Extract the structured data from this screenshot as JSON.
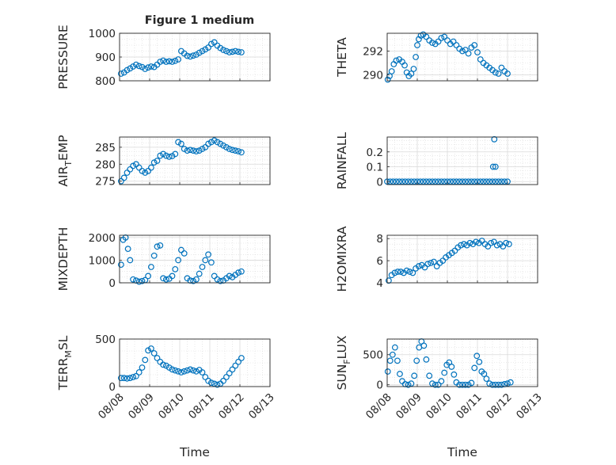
{
  "figure": {
    "title": "Figure 1 medium"
  },
  "style": {
    "marker_color": "#0072BD",
    "axis_color": "#262626",
    "grid_color": "#d9d9d9"
  },
  "chart_data": [
    {
      "type": "scatter",
      "ylabel": "PRESSURE",
      "xlabel": "",
      "xlim": [
        "08/08",
        "08/13"
      ],
      "ylim": [
        800,
        1000
      ],
      "yticks": [
        800,
        900,
        1000
      ],
      "xticks": [
        "08/08",
        "08/09",
        "08/10",
        "08/11",
        "08/12",
        "08/13"
      ],
      "grid": true,
      "minor_grid": true,
      "x": [
        0.05,
        0.15,
        0.25,
        0.35,
        0.45,
        0.55,
        0.65,
        0.75,
        0.85,
        0.95,
        1.05,
        1.15,
        1.25,
        1.35,
        1.45,
        1.55,
        1.65,
        1.75,
        1.85,
        1.95,
        2.05,
        2.15,
        2.25,
        2.35,
        2.45,
        2.55,
        2.65,
        2.75,
        2.85,
        2.95,
        3.05,
        3.15,
        3.25,
        3.35,
        3.45,
        3.55,
        3.65,
        3.75,
        3.85,
        3.95,
        4.05
      ],
      "y": [
        830,
        835,
        845,
        852,
        860,
        868,
        862,
        858,
        850,
        856,
        860,
        858,
        868,
        880,
        885,
        880,
        882,
        880,
        884,
        890,
        925,
        915,
        905,
        902,
        906,
        910,
        918,
        925,
        932,
        940,
        955,
        962,
        948,
        938,
        930,
        925,
        920,
        922,
        925,
        922,
        920
      ]
    },
    {
      "type": "scatter",
      "ylabel": "THETA",
      "xlabel": "",
      "xlim": [
        "08/08",
        "08/13"
      ],
      "ylim": [
        289.5,
        293.5
      ],
      "yticks": [
        290,
        292
      ],
      "xticks": [
        "08/08",
        "08/09",
        "08/10",
        "08/11",
        "08/12",
        "08/13"
      ],
      "grid": true,
      "minor_grid": true,
      "x": [
        0.02,
        0.08,
        0.15,
        0.22,
        0.3,
        0.4,
        0.5,
        0.58,
        0.65,
        0.72,
        0.8,
        0.88,
        0.95,
        1.0,
        1.05,
        1.12,
        1.2,
        1.3,
        1.4,
        1.5,
        1.6,
        1.7,
        1.8,
        1.9,
        2.0,
        2.1,
        2.2,
        2.3,
        2.4,
        2.5,
        2.6,
        2.7,
        2.8,
        2.9,
        3.0,
        3.1,
        3.2,
        3.3,
        3.4,
        3.5,
        3.6,
        3.7,
        3.8,
        3.9,
        4.0
      ],
      "y": [
        289.6,
        289.9,
        290.3,
        290.9,
        291.2,
        291.3,
        291.1,
        290.8,
        290.2,
        289.9,
        290.1,
        290.5,
        291.5,
        292.5,
        293.0,
        293.3,
        293.4,
        293.2,
        292.9,
        292.7,
        292.6,
        292.8,
        293.1,
        293.2,
        292.9,
        292.6,
        292.8,
        292.5,
        292.2,
        292.0,
        292.1,
        291.8,
        292.3,
        292.5,
        291.9,
        291.3,
        291.0,
        290.8,
        290.6,
        290.4,
        290.2,
        290.1,
        290.6,
        290.3,
        290.1
      ]
    },
    {
      "type": "scatter",
      "ylabel": "AIR_TEMP",
      "xlabel": "",
      "xlim": [
        "08/08",
        "08/13"
      ],
      "ylim": [
        274,
        288
      ],
      "yticks": [
        275,
        280,
        285
      ],
      "xticks": [
        "08/08",
        "08/09",
        "08/10",
        "08/11",
        "08/12",
        "08/13"
      ],
      "grid": true,
      "minor_grid": true,
      "x": [
        0.05,
        0.15,
        0.25,
        0.35,
        0.45,
        0.55,
        0.65,
        0.75,
        0.85,
        0.95,
        1.05,
        1.15,
        1.25,
        1.35,
        1.45,
        1.55,
        1.65,
        1.75,
        1.85,
        1.95,
        2.05,
        2.15,
        2.25,
        2.35,
        2.45,
        2.55,
        2.65,
        2.75,
        2.85,
        2.95,
        3.05,
        3.15,
        3.25,
        3.35,
        3.45,
        3.55,
        3.65,
        3.75,
        3.85,
        3.95,
        4.05
      ],
      "y": [
        275,
        276,
        277.5,
        278.5,
        279.5,
        280,
        279,
        278,
        277.5,
        278,
        279,
        280.5,
        281,
        282.5,
        283,
        282.5,
        282.2,
        282.4,
        283,
        286.5,
        286,
        284.5,
        284,
        284.2,
        284,
        283.8,
        284,
        284.5,
        285,
        286,
        286.5,
        287,
        286.5,
        286,
        285.5,
        285,
        284.5,
        284.2,
        284,
        283.8,
        283.5
      ]
    },
    {
      "type": "scatter",
      "ylabel": "RAINFALL",
      "xlabel": "",
      "xlim": [
        "08/08",
        "08/13"
      ],
      "ylim": [
        -0.02,
        0.3
      ],
      "yticks": [
        0,
        0.1,
        0.2
      ],
      "xticks": [
        "08/08",
        "08/09",
        "08/10",
        "08/11",
        "08/12",
        "08/13"
      ],
      "grid": true,
      "minor_grid": true,
      "x": [
        0.0,
        0.1,
        0.2,
        0.3,
        0.4,
        0.5,
        0.6,
        0.7,
        0.8,
        0.9,
        1.0,
        1.1,
        1.2,
        1.3,
        1.4,
        1.5,
        1.6,
        1.7,
        1.8,
        1.9,
        2.0,
        2.1,
        2.2,
        2.3,
        2.4,
        2.5,
        2.6,
        2.7,
        2.8,
        2.9,
        3.0,
        3.1,
        3.2,
        3.3,
        3.4,
        3.5,
        3.6,
        3.7,
        3.8,
        3.9,
        4.0,
        3.52,
        3.56,
        3.6
      ],
      "y": [
        0,
        0,
        0,
        0,
        0,
        0,
        0,
        0,
        0,
        0,
        0,
        0,
        0,
        0,
        0,
        0,
        0,
        0,
        0,
        0,
        0,
        0,
        0,
        0,
        0,
        0,
        0,
        0,
        0,
        0,
        0,
        0,
        0,
        0,
        0,
        0,
        0,
        0,
        0,
        0,
        0,
        0.1,
        0.285,
        0.1
      ]
    },
    {
      "type": "scatter",
      "ylabel": "MIXDEPTH",
      "xlabel": "",
      "xlim": [
        "08/08",
        "08/13"
      ],
      "ylim": [
        0,
        2100
      ],
      "yticks": [
        0,
        1000,
        2000
      ],
      "xticks": [
        "08/08",
        "08/09",
        "08/10",
        "08/11",
        "08/12",
        "08/13"
      ],
      "grid": true,
      "minor_grid": true,
      "x": [
        0.05,
        0.12,
        0.2,
        0.28,
        0.35,
        0.45,
        0.55,
        0.65,
        0.75,
        0.85,
        0.95,
        1.05,
        1.15,
        1.25,
        1.35,
        1.45,
        1.55,
        1.65,
        1.75,
        1.85,
        1.95,
        2.05,
        2.15,
        2.25,
        2.35,
        2.45,
        2.55,
        2.65,
        2.75,
        2.85,
        2.95,
        3.05,
        3.15,
        3.25,
        3.35,
        3.45,
        3.55,
        3.65,
        3.75,
        3.85,
        3.95,
        4.05
      ],
      "y": [
        800,
        1900,
        2000,
        1500,
        1000,
        150,
        100,
        50,
        80,
        120,
        300,
        700,
        1200,
        1600,
        1650,
        200,
        150,
        180,
        300,
        600,
        1000,
        1450,
        1300,
        200,
        100,
        80,
        150,
        400,
        700,
        1000,
        1250,
        900,
        300,
        150,
        80,
        100,
        200,
        300,
        250,
        350,
        450,
        500
      ]
    },
    {
      "type": "scatter",
      "ylabel": "H2OMIXRA",
      "xlabel": "",
      "xlim": [
        "08/08",
        "08/13"
      ],
      "ylim": [
        4,
        8.3
      ],
      "yticks": [
        4,
        6,
        8
      ],
      "xticks": [
        "08/08",
        "08/09",
        "08/10",
        "08/11",
        "08/12",
        "08/13"
      ],
      "grid": true,
      "minor_grid": true,
      "x": [
        0.05,
        0.15,
        0.25,
        0.35,
        0.45,
        0.55,
        0.65,
        0.75,
        0.85,
        0.95,
        1.05,
        1.15,
        1.25,
        1.35,
        1.45,
        1.55,
        1.65,
        1.75,
        1.85,
        1.95,
        2.05,
        2.15,
        2.25,
        2.35,
        2.45,
        2.55,
        2.65,
        2.75,
        2.85,
        2.95,
        3.05,
        3.15,
        3.25,
        3.35,
        3.45,
        3.55,
        3.65,
        3.75,
        3.85,
        3.95,
        4.05
      ],
      "y": [
        4.2,
        4.7,
        4.9,
        5.0,
        5.0,
        4.9,
        5.1,
        5.0,
        4.9,
        5.3,
        5.5,
        5.6,
        5.4,
        5.7,
        5.8,
        5.9,
        5.5,
        5.8,
        6.0,
        6.3,
        6.5,
        6.7,
        6.9,
        7.2,
        7.4,
        7.5,
        7.4,
        7.6,
        7.5,
        7.7,
        7.6,
        7.8,
        7.5,
        7.3,
        7.6,
        7.7,
        7.4,
        7.5,
        7.3,
        7.6,
        7.5
      ]
    },
    {
      "type": "scatter",
      "ylabel": "TERR_MSL",
      "xlabel": "Time",
      "xlim": [
        "08/08",
        "08/13"
      ],
      "ylim": [
        0,
        500
      ],
      "yticks": [
        0,
        500
      ],
      "xticks": [
        "08/08",
        "08/09",
        "08/10",
        "08/11",
        "08/12",
        "08/13"
      ],
      "grid": true,
      "minor_grid": true,
      "x": [
        0.05,
        0.15,
        0.25,
        0.35,
        0.45,
        0.55,
        0.65,
        0.75,
        0.85,
        0.95,
        1.05,
        1.15,
        1.25,
        1.35,
        1.45,
        1.55,
        1.65,
        1.75,
        1.85,
        1.95,
        2.05,
        2.15,
        2.25,
        2.35,
        2.45,
        2.55,
        2.65,
        2.75,
        2.85,
        2.95,
        3.05,
        3.15,
        3.25,
        3.35,
        3.45,
        3.55,
        3.65,
        3.75,
        3.85,
        3.95,
        4.05
      ],
      "y": [
        90,
        90,
        85,
        90,
        100,
        110,
        150,
        200,
        280,
        380,
        400,
        350,
        300,
        260,
        230,
        220,
        200,
        180,
        170,
        160,
        150,
        160,
        170,
        180,
        170,
        160,
        175,
        150,
        100,
        60,
        40,
        30,
        20,
        30,
        60,
        100,
        140,
        180,
        220,
        260,
        300
      ]
    },
    {
      "type": "scatter",
      "ylabel": "SUN_FLUX",
      "xlabel": "Time",
      "xlim": [
        "08/08",
        "08/13"
      ],
      "ylim": [
        -30,
        760
      ],
      "yticks": [
        0,
        500
      ],
      "xticks": [
        "08/08",
        "08/09",
        "08/10",
        "08/11",
        "08/12",
        "08/13"
      ],
      "grid": true,
      "minor_grid": true,
      "x": [
        0.02,
        0.1,
        0.18,
        0.26,
        0.34,
        0.42,
        0.5,
        0.6,
        0.7,
        0.8,
        0.9,
        0.98,
        1.06,
        1.14,
        1.22,
        1.3,
        1.4,
        1.5,
        1.6,
        1.7,
        1.8,
        1.9,
        1.98,
        2.06,
        2.14,
        2.22,
        2.3,
        2.4,
        2.5,
        2.6,
        2.7,
        2.8,
        2.9,
        2.98,
        3.06,
        3.14,
        3.22,
        3.3,
        3.4,
        3.5,
        3.6,
        3.7,
        3.8,
        3.9,
        4.0,
        4.1
      ],
      "y": [
        220,
        400,
        500,
        620,
        400,
        180,
        60,
        10,
        0,
        20,
        150,
        400,
        620,
        720,
        650,
        420,
        150,
        20,
        0,
        0,
        60,
        200,
        330,
        370,
        300,
        170,
        40,
        0,
        0,
        0,
        0,
        30,
        280,
        480,
        380,
        220,
        180,
        100,
        20,
        0,
        0,
        0,
        0,
        10,
        20,
        40
      ]
    }
  ]
}
